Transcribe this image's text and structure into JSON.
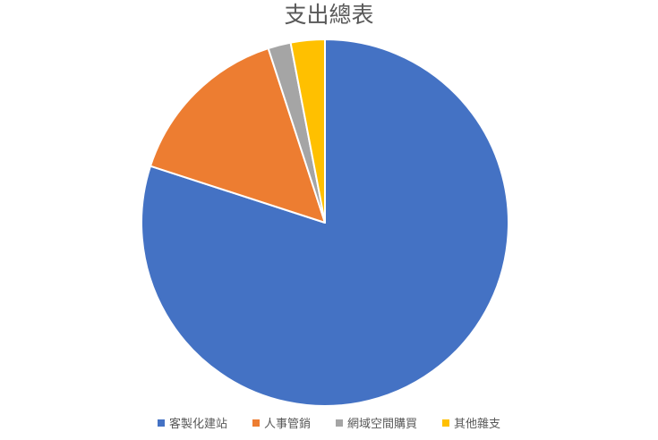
{
  "chart_data": {
    "type": "pie",
    "title": "支出總表",
    "categories": [
      "客製化建站",
      "人事管銷",
      "網域空間購買",
      "其他雜支"
    ],
    "values": [
      80,
      15,
      2,
      3
    ],
    "colors": [
      "#4472C4",
      "#ED7D31",
      "#A5A5A5",
      "#FFC000"
    ],
    "legend_position": "bottom",
    "start_angle_deg": 0,
    "direction": "clockwise",
    "slice_border_color": "#FFFFFF",
    "text_color": "#595959",
    "background_color": "#FFFFFF"
  }
}
